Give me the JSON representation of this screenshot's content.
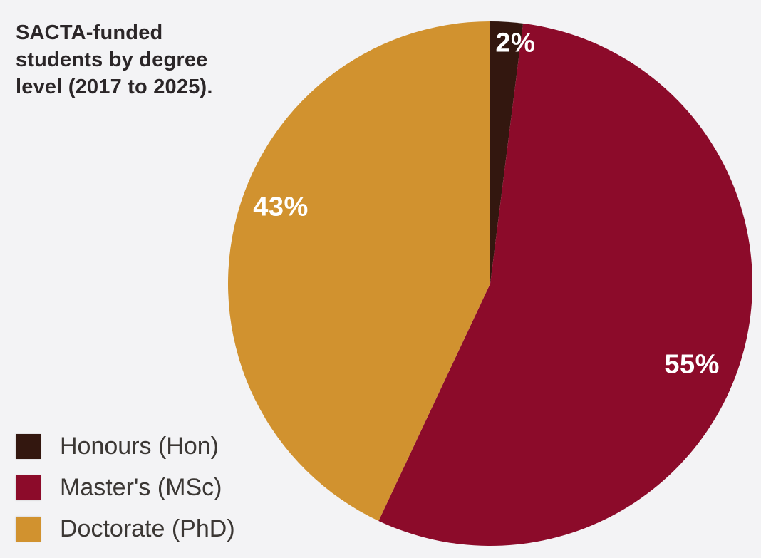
{
  "page": {
    "background": "#f3f3f5"
  },
  "title": {
    "full_text": "SACTA-funded students by degree level (2017 to 2025).",
    "lines": [
      "SACTA-funded",
      "students by degree",
      "level (2017 to 2025)."
    ],
    "color": "#2b2628"
  },
  "chart_data": {
    "type": "pie",
    "title": "SACTA-funded students by degree level (2017 to 2025).",
    "value_unit": "percent",
    "start_angle_deg": 0,
    "direction": "clockwise",
    "legend_position": "bottom-left",
    "slice_label_color": "#ffffff",
    "slices": [
      {
        "label": "Honours (Hon)",
        "value": 2,
        "display": "2%",
        "color": "#33170f",
        "label_angle_deg": 6,
        "label_radius_frac": 0.92
      },
      {
        "label": "Master's (MSc)",
        "value": 55,
        "display": "55%",
        "color": "#8c0b2a",
        "label_angle_deg": 112,
        "label_radius_frac": 0.83
      },
      {
        "label": "Doctorate (PhD)",
        "value": 43,
        "display": "43%",
        "color": "#d1922f",
        "label_angle_deg": 290,
        "label_radius_frac": 0.85
      }
    ]
  },
  "legend": {
    "text_color": "#3b3734"
  }
}
